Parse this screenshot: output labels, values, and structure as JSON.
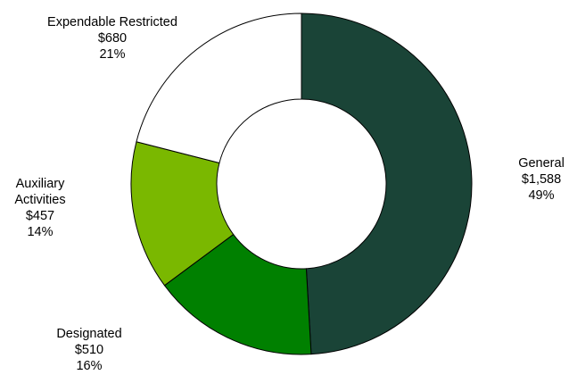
{
  "chart_data": {
    "type": "pie",
    "variant": "donut",
    "slices": [
      {
        "name": "General",
        "label_lines": [
          "General"
        ],
        "value_label": "$1,588",
        "percent_label": "49%",
        "value": 1588,
        "color": "#1a4437"
      },
      {
        "name": "Designated",
        "label_lines": [
          "Designated"
        ],
        "value_label": "$510",
        "percent_label": "16%",
        "value": 510,
        "color": "#008000"
      },
      {
        "name": "Auxiliary Activities",
        "label_lines": [
          "Auxiliary",
          "Activities"
        ],
        "value_label": "$457",
        "percent_label": "14%",
        "value": 457,
        "color": "#7ab800"
      },
      {
        "name": "Expendable Restricted",
        "label_lines": [
          "Expendable  Restricted"
        ],
        "value_label": "$680",
        "percent_label": "21%",
        "value": 680,
        "color": "#ffffff"
      }
    ],
    "start_angle_deg": 0,
    "direction": "clockwise",
    "outline_color": "#000000",
    "legend": "none"
  }
}
